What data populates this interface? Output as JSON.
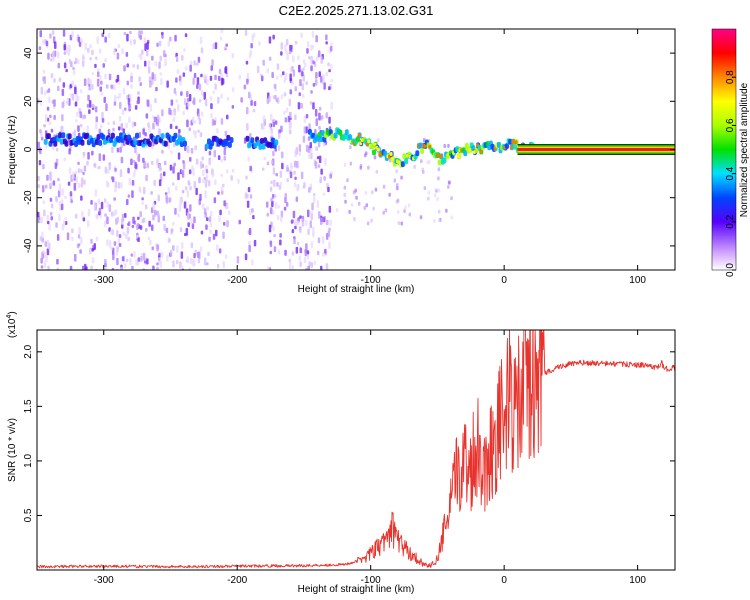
{
  "title": "C2E2.2025.271.13.02.G31",
  "colors": {
    "snr_line": "#e8332d",
    "freq_line": "#e81e1e",
    "bg": "#ffffff"
  },
  "chart_data": [
    {
      "type": "heatmap",
      "title": "C2E2.2025.271.13.02.G31",
      "xlabel": "Height of straight line (km)",
      "ylabel": "Frequency (Hz)",
      "xlim": [
        -350,
        128
      ],
      "ylim": [
        -50,
        50
      ],
      "x_ticks": [
        -300,
        -200,
        -100,
        0,
        100
      ],
      "y_ticks": [
        -40,
        -20,
        0,
        20,
        40
      ],
      "colorbar": {
        "label": "Normalized spectral amplitude",
        "range": [
          0,
          1
        ],
        "ticks": [
          "0.0",
          "0.2",
          "0.4",
          "0.6",
          "0.8"
        ]
      },
      "frequency_track": {
        "x": [
          -345,
          -320,
          -300,
          -280,
          -255,
          -220,
          -200,
          -180,
          -140,
          -125,
          -110,
          -100,
          -90,
          -80,
          -70,
          -60,
          -50,
          -40,
          -30,
          -20,
          -10,
          0,
          10,
          20,
          128
        ],
        "y": [
          4,
          4,
          4,
          4,
          4,
          3,
          3,
          3,
          6,
          6,
          4,
          1,
          -2,
          -5,
          -3,
          3,
          -4,
          -2,
          0,
          1,
          1,
          2,
          1,
          0,
          0
        ]
      },
      "noise_extent_x": [
        -350,
        -130
      ]
    },
    {
      "type": "line",
      "xlabel": "Height of straight line (km)",
      "ylabel": "SNR (10 * v/v)",
      "y_multiplier_label": "(x10",
      "y_multiplier_exp": "4",
      "xlim": [
        -350,
        128
      ],
      "ylim": [
        0,
        22000
      ],
      "x_ticks": [
        -300,
        -200,
        -100,
        0,
        100
      ],
      "y_ticks": [
        "0.5",
        "1.0",
        "1.5",
        "2.0"
      ],
      "series": [
        {
          "name": "SNR",
          "x": [
            -350,
            -300,
            -250,
            -200,
            -150,
            -120,
            -110,
            -100,
            -90,
            -85,
            -80,
            -75,
            -70,
            -65,
            -60,
            -55,
            -50,
            -45,
            -40,
            -35,
            -30,
            -25,
            -20,
            -15,
            -10,
            -5,
            0,
            5,
            10,
            15,
            20,
            25,
            30,
            40,
            50,
            60,
            70,
            80,
            90,
            100,
            110,
            115,
            118,
            120,
            128
          ],
          "values": [
            300,
            350,
            300,
            350,
            400,
            500,
            800,
            1500,
            2500,
            4000,
            3000,
            2000,
            1500,
            1000,
            500,
            400,
            1000,
            3500,
            6000,
            9000,
            10000,
            9500,
            12000,
            9000,
            11000,
            13000,
            14000,
            16000,
            14500,
            16500,
            17000,
            17500,
            18000,
            18600,
            18900,
            19000,
            18950,
            18900,
            18850,
            18800,
            18700,
            18500,
            19000,
            18400,
            18600
          ]
        }
      ]
    }
  ]
}
